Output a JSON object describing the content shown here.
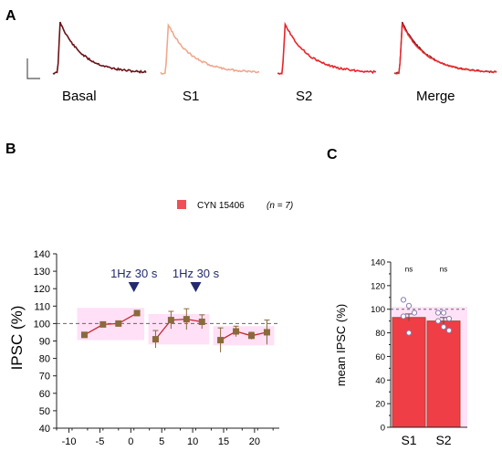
{
  "panels": {
    "a": "A",
    "b": "B",
    "c": "C"
  },
  "traces": {
    "labels": [
      "Basal",
      "S1",
      "S2",
      "Merge"
    ],
    "colors": {
      "basal": "#6b1218",
      "s1": "#f0a88e",
      "s2": "#e8242c"
    }
  },
  "legend": {
    "label": "CYN 15406",
    "n_label": "(n = 7)",
    "color": "#ef4f57"
  },
  "chart_data": [
    {
      "type": "line",
      "title": "",
      "xlabel": "",
      "ylabel": "IPSC (%)",
      "xlim": [
        -12,
        24
      ],
      "ylim": [
        40,
        140
      ],
      "xticks": [
        -10,
        -5,
        0,
        5,
        10,
        15,
        20
      ],
      "yticks": [
        40,
        50,
        60,
        70,
        80,
        90,
        100,
        110,
        120,
        130,
        140
      ],
      "reference_line": 100,
      "grid": false,
      "series": [
        {
          "x": [
            -7.5,
            -4.5,
            -2,
            1
          ],
          "y": [
            93.5,
            99.5,
            100,
            106
          ],
          "err": [
            1.5,
            1.5,
            1.5,
            1.5
          ]
        },
        {
          "x": [
            4,
            6.5,
            9,
            11.5
          ],
          "y": [
            91,
            102,
            102.5,
            101
          ],
          "err": [
            5,
            5,
            6,
            4
          ]
        },
        {
          "x": [
            14.5,
            17,
            19.5,
            22
          ],
          "y": [
            90.5,
            95.5,
            93,
            95
          ],
          "err": [
            7,
            3,
            2,
            7
          ]
        }
      ],
      "series_colors": {
        "line": "#c9262f",
        "marker": "#8a6a3a",
        "band": "#ffd6f3"
      },
      "annotations": [
        {
          "x": 0.5,
          "text": "1Hz 30 s",
          "color": "#232a6e"
        },
        {
          "x": 10.5,
          "text": "1Hz 30 s",
          "color": "#232a6e"
        }
      ]
    },
    {
      "type": "bar",
      "title": "",
      "xlabel": "",
      "ylabel": "mean IPSC (%)",
      "categories": [
        "S1",
        "S2"
      ],
      "values": [
        93,
        90
      ],
      "err": [
        3,
        3
      ],
      "ylim": [
        0,
        140
      ],
      "yticks": [
        0,
        20,
        40,
        60,
        80,
        100,
        120,
        140
      ],
      "reference_line": 100,
      "significance": [
        "ns",
        "ns"
      ],
      "points": [
        [
          108,
          103,
          97,
          94,
          80
        ],
        [
          97,
          97,
          92,
          90,
          85,
          82
        ]
      ],
      "colors": {
        "bar": "#ef3e45",
        "edge": "#a4473c"
      }
    }
  ]
}
